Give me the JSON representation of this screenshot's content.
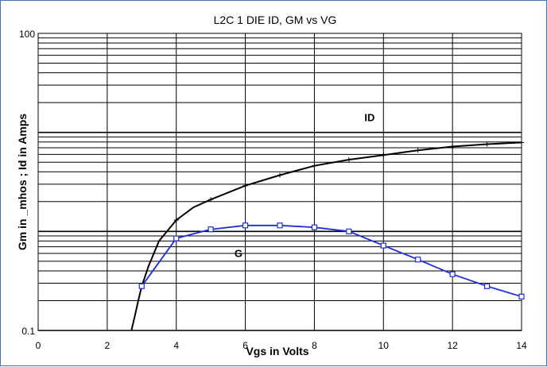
{
  "chart_data": {
    "type": "line",
    "title": "L2C 1 DIE   ID, GM vs VG",
    "xlabel": "Vgs in Volts",
    "ylabel": "Gm in _mhos ;  Id in Amps",
    "xlim": [
      0,
      14
    ],
    "ylim": [
      0.1,
      100
    ],
    "yscale": "log",
    "x_ticks": [
      "0",
      "2",
      "4",
      "6",
      "8",
      "10",
      "12",
      "14"
    ],
    "y_ticks": [
      {
        "value": 100,
        "label": "100"
      },
      {
        "value": 0.1,
        "label": "0.1"
      }
    ],
    "grid": true,
    "series": [
      {
        "name": "ID",
        "color": "#000000",
        "marker": "plus",
        "curve_x": [
          2.7,
          2.8,
          2.9,
          3.0,
          3.2,
          3.5,
          4,
          4.5,
          5,
          6,
          7,
          8,
          9,
          10,
          11,
          12,
          13,
          14
        ],
        "curve_y": [
          0.1,
          0.14,
          0.2,
          0.28,
          0.45,
          0.8,
          1.3,
          1.75,
          2.1,
          2.9,
          3.7,
          4.6,
          5.3,
          5.9,
          6.6,
          7.2,
          7.6,
          7.9
        ],
        "x": [
          3,
          4,
          5,
          6,
          7,
          8,
          9,
          10,
          11,
          12,
          13,
          14
        ],
        "y": [
          0.28,
          1.3,
          2.1,
          2.9,
          3.7,
          4.6,
          5.3,
          5.9,
          6.6,
          7.2,
          7.6,
          7.9
        ]
      },
      {
        "name": "G",
        "color": "#1f2fd6",
        "marker": "square",
        "x": [
          3,
          4,
          5,
          6,
          7,
          8,
          9,
          10,
          11,
          12,
          13,
          14
        ],
        "y": [
          0.28,
          0.85,
          1.05,
          1.15,
          1.15,
          1.1,
          1.0,
          0.72,
          0.52,
          0.37,
          0.28,
          0.22
        ]
      }
    ],
    "annotations": [
      {
        "text": "ID",
        "x": 9.6,
        "y": 13
      },
      {
        "text": "G",
        "x": 5.8,
        "y": 0.55
      }
    ]
  }
}
